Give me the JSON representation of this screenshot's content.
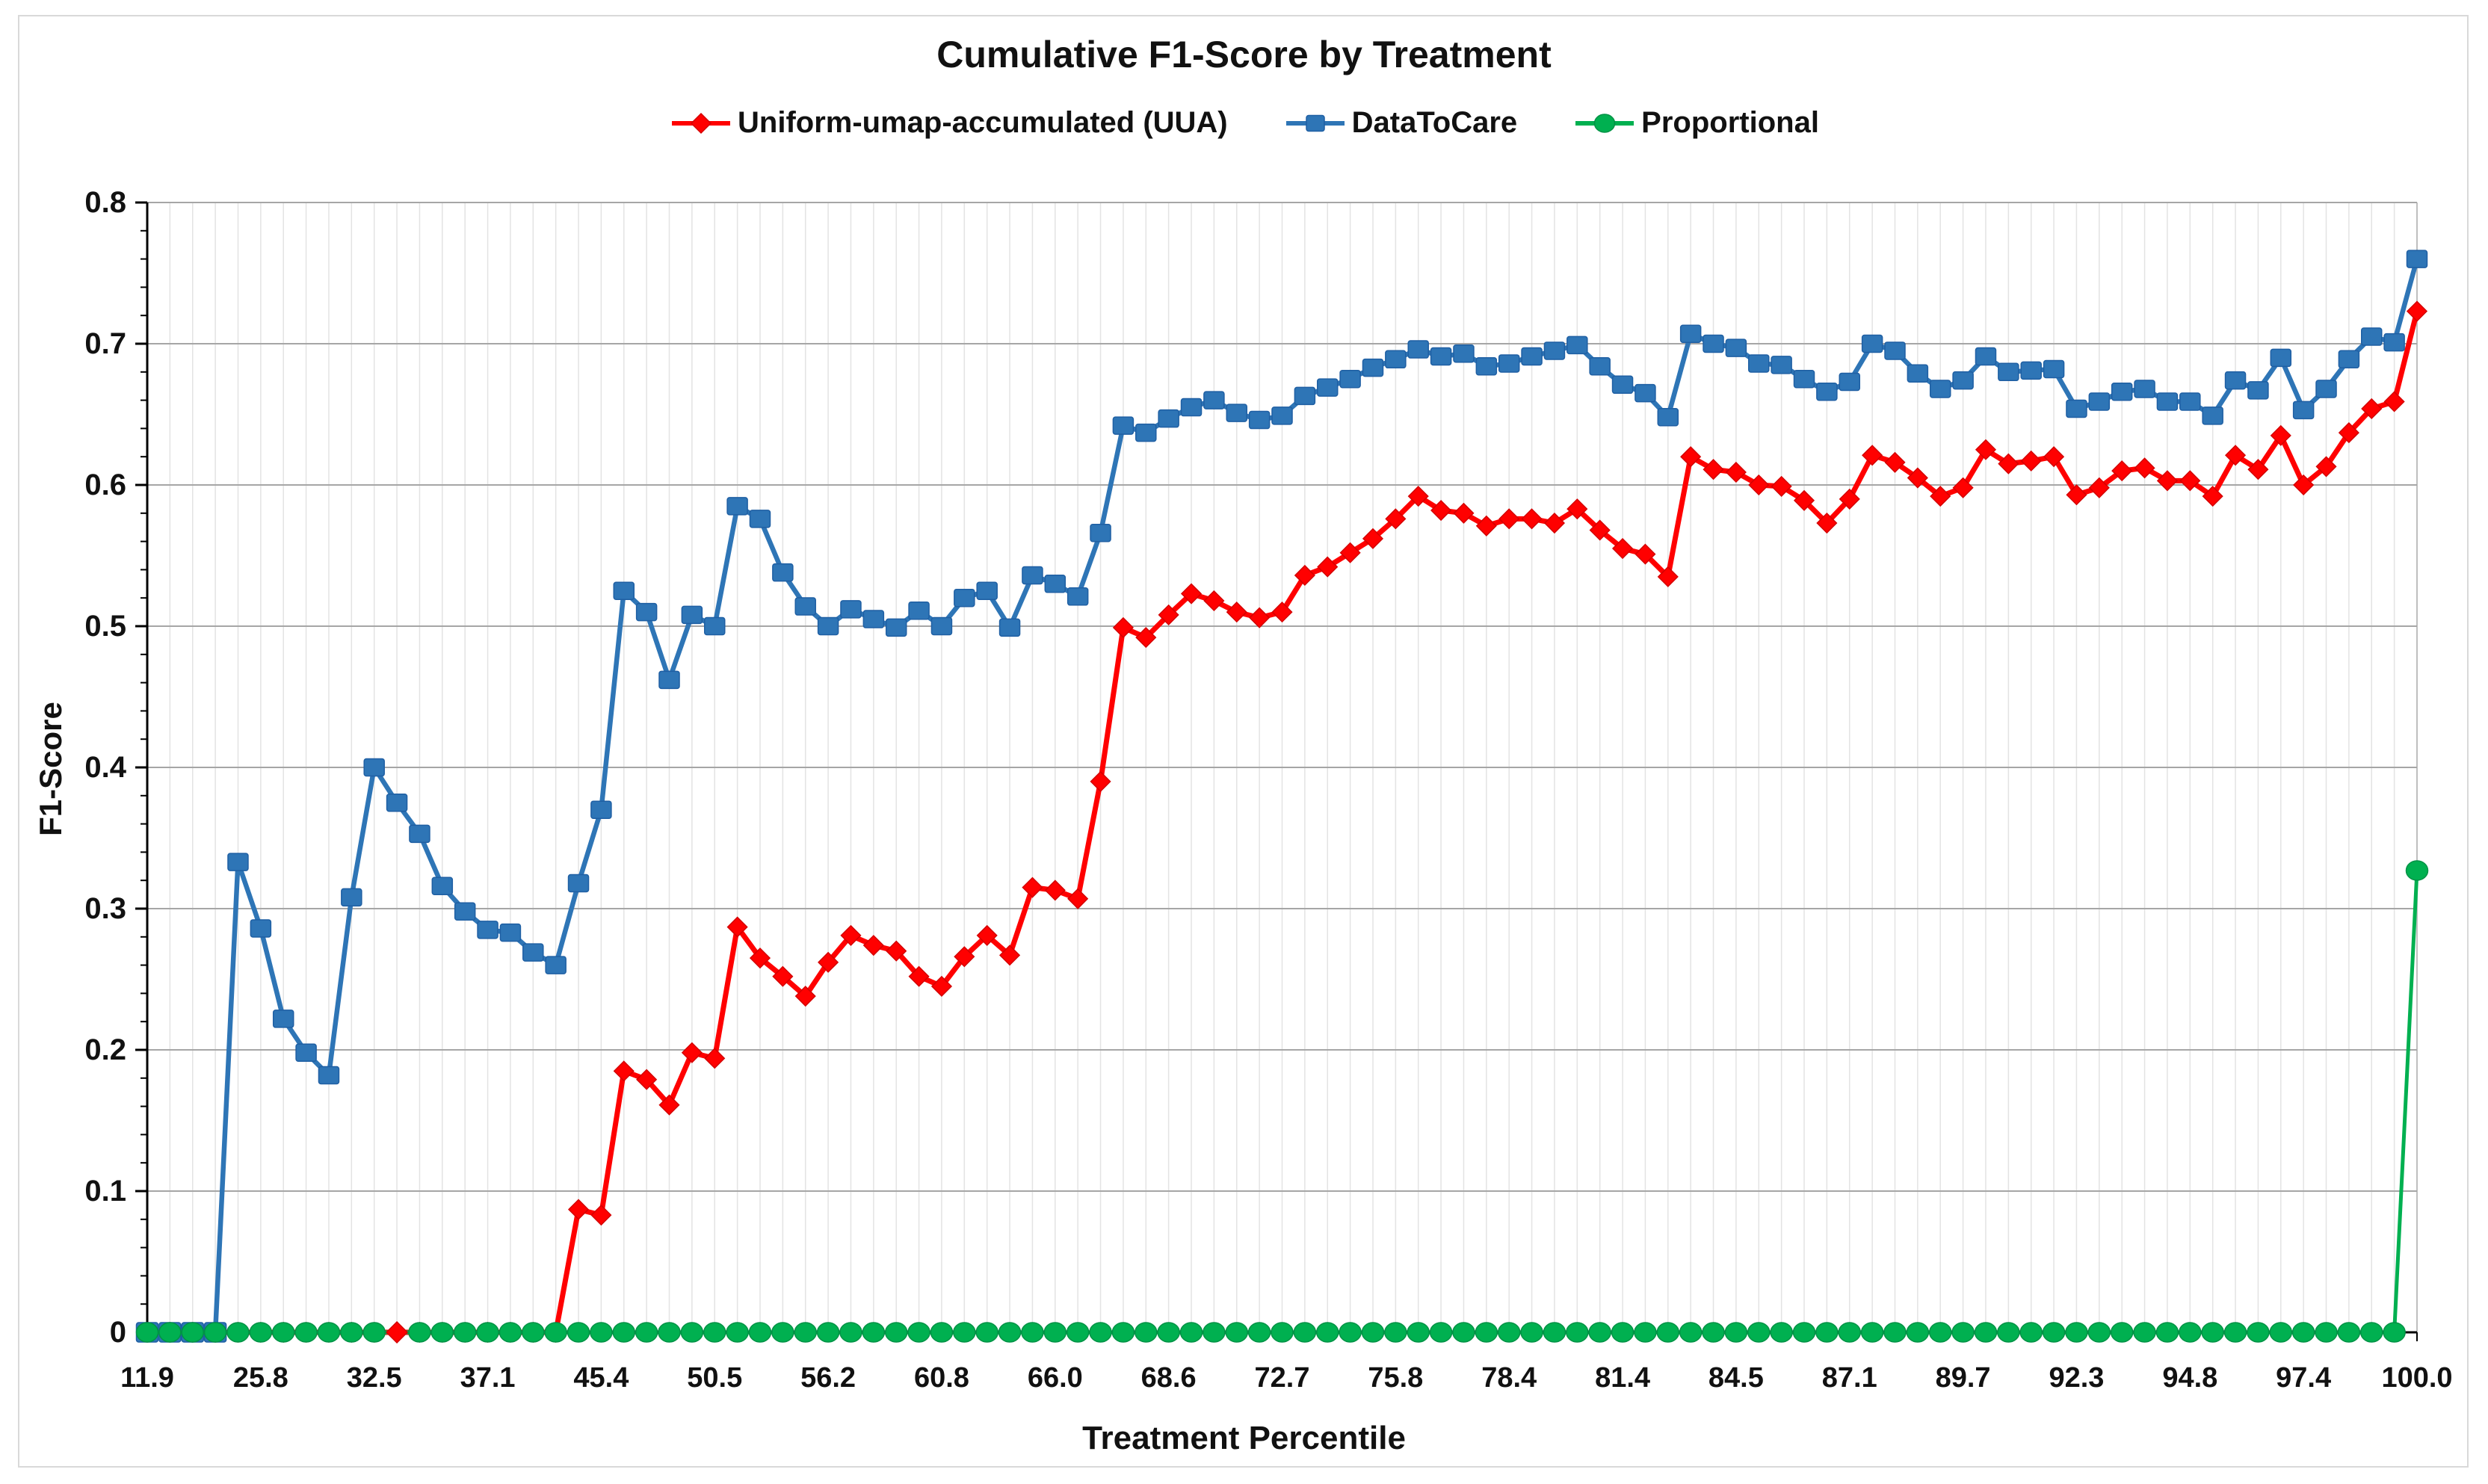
{
  "title": "Cumulative F1-Score by Treatment",
  "y_axis": {
    "title": "F1-Score",
    "tick_labels": [
      "0",
      "0.1",
      "0.2",
      "0.3",
      "0.4",
      "0.5",
      "0.6",
      "0.7",
      "0.8"
    ]
  },
  "x_axis": {
    "title": "Treatment Percentile",
    "tick_labels": [
      "11.9",
      "25.8",
      "32.5",
      "37.1",
      "45.4",
      "50.5",
      "56.2",
      "60.8",
      "66.0",
      "68.6",
      "72.7",
      "75.8",
      "78.4",
      "81.4",
      "84.5",
      "87.1",
      "89.7",
      "92.3",
      "94.8",
      "97.4",
      "100.0"
    ]
  },
  "legend": [
    {
      "label": "Uniform-umap-accumulated (UUA)",
      "marker": "diamond",
      "color": "#FF0000"
    },
    {
      "label": "DataToCare",
      "marker": "square",
      "color": "#2E75B6"
    },
    {
      "label": "Proportional",
      "marker": "circle",
      "color": "#00B050"
    }
  ],
  "colors": {
    "uua": "#FF0000",
    "uua_edge": "#D40000",
    "datatocare": "#2E75B6",
    "datatocare_edge": "#1F5FA3",
    "proportional": "#00B050",
    "proportional_edge": "#009245",
    "major_gridline": "#A6A6A6",
    "minor_gridline": "#E3E3E3",
    "axis_line": "#000000",
    "plot_right_border": "#BFBFBF",
    "text": "#111111",
    "frame_border": "#D9D9D9"
  },
  "chart_data": {
    "type": "line",
    "title": "Cumulative F1-Score by Treatment",
    "xlabel": "Treatment Percentile",
    "ylabel": "F1-Score",
    "ylim": [
      0,
      0.8
    ],
    "y_major_step": 0.1,
    "y_minor_step": 0.02,
    "grid": true,
    "legend_position": "top",
    "n_points": 101,
    "x_label_interval": 5,
    "x_tick_labels": [
      "11.9",
      "25.8",
      "32.5",
      "37.1",
      "45.4",
      "50.5",
      "56.2",
      "60.8",
      "66.0",
      "68.6",
      "72.7",
      "75.8",
      "78.4",
      "81.4",
      "84.5",
      "87.1",
      "89.7",
      "92.3",
      "94.8",
      "97.4",
      "100.0"
    ],
    "green_marker_gap_index": 11,
    "series": [
      {
        "name": "Uniform-umap-accumulated (UUA)",
        "marker": "diamond",
        "color": "#FF0000",
        "values": [
          0,
          0,
          0,
          0,
          0,
          0,
          0,
          0,
          0,
          0,
          0,
          0,
          0,
          0,
          0,
          0,
          0,
          0,
          0,
          0.087,
          0.083,
          0.185,
          0.179,
          0.161,
          0.198,
          0.194,
          0.287,
          0.265,
          0.252,
          0.238,
          0.262,
          0.281,
          0.274,
          0.27,
          0.252,
          0.245,
          0.266,
          0.281,
          0.267,
          0.315,
          0.313,
          0.307,
          0.39,
          0.499,
          0.492,
          0.508,
          0.523,
          0.518,
          0.51,
          0.506,
          0.51,
          0.536,
          0.542,
          0.552,
          0.562,
          0.576,
          0.592,
          0.582,
          0.58,
          0.571,
          0.576,
          0.576,
          0.573,
          0.583,
          0.568,
          0.555,
          0.551,
          0.535,
          0.62,
          0.611,
          0.609,
          0.6,
          0.599,
          0.589,
          0.573,
          0.59,
          0.621,
          0.616,
          0.605,
          0.592,
          0.598,
          0.625,
          0.615,
          0.617,
          0.62,
          0.593,
          0.598,
          0.61,
          0.612,
          0.603,
          0.603,
          0.592,
          0.621,
          0.611,
          0.635,
          0.6,
          0.613,
          0.637,
          0.654,
          0.659,
          0.723
        ]
      },
      {
        "name": "DataToCare",
        "marker": "square",
        "color": "#2E75B6",
        "values": [
          0,
          0,
          0,
          0,
          0.333,
          0.286,
          0.222,
          0.198,
          0.182,
          0.308,
          0.4,
          0.375,
          0.353,
          0.316,
          0.298,
          0.285,
          0.283,
          0.269,
          0.26,
          0.318,
          0.37,
          0.525,
          0.51,
          0.462,
          0.508,
          0.5,
          0.585,
          0.576,
          0.538,
          0.514,
          0.5,
          0.512,
          0.505,
          0.499,
          0.511,
          0.5,
          0.52,
          0.525,
          0.499,
          0.536,
          0.53,
          0.521,
          0.566,
          0.642,
          0.637,
          0.647,
          0.655,
          0.66,
          0.651,
          0.646,
          0.649,
          0.663,
          0.669,
          0.675,
          0.683,
          0.689,
          0.696,
          0.691,
          0.693,
          0.684,
          0.686,
          0.691,
          0.695,
          0.699,
          0.684,
          0.671,
          0.665,
          0.648,
          0.707,
          0.7,
          0.697,
          0.686,
          0.685,
          0.675,
          0.666,
          0.673,
          0.7,
          0.695,
          0.679,
          0.668,
          0.674,
          0.691,
          0.68,
          0.681,
          0.682,
          0.654,
          0.659,
          0.666,
          0.668,
          0.659,
          0.659,
          0.649,
          0.674,
          0.667,
          0.69,
          0.653,
          0.668,
          0.689,
          0.705,
          0.701,
          0.76
        ]
      },
      {
        "name": "Proportional",
        "marker": "circle",
        "color": "#00B050",
        "values": [
          0,
          0,
          0,
          0,
          0,
          0,
          0,
          0,
          0,
          0,
          0,
          0,
          0,
          0,
          0,
          0,
          0,
          0,
          0,
          0,
          0,
          0,
          0,
          0,
          0,
          0,
          0,
          0,
          0,
          0,
          0,
          0,
          0,
          0,
          0,
          0,
          0,
          0,
          0,
          0,
          0,
          0,
          0,
          0,
          0,
          0,
          0,
          0,
          0,
          0,
          0,
          0,
          0,
          0,
          0,
          0,
          0,
          0,
          0,
          0,
          0,
          0,
          0,
          0,
          0,
          0,
          0,
          0,
          0,
          0,
          0,
          0,
          0,
          0,
          0,
          0,
          0,
          0,
          0,
          0,
          0,
          0,
          0,
          0,
          0,
          0,
          0,
          0,
          0,
          0,
          0,
          0,
          0,
          0,
          0,
          0,
          0,
          0,
          0,
          0,
          0.327
        ]
      }
    ]
  }
}
